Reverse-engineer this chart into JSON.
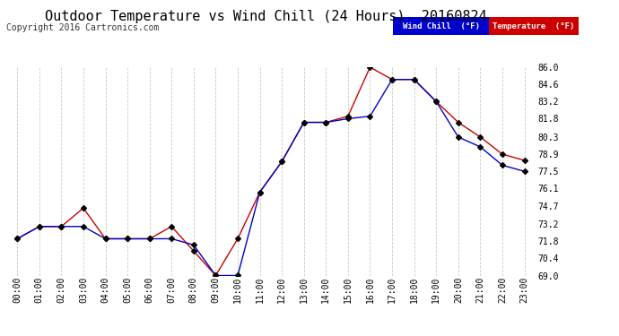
{
  "title": "Outdoor Temperature vs Wind Chill (24 Hours)  20160824",
  "copyright": "Copyright 2016 Cartronics.com",
  "ylabel_right_ticks": [
    69.0,
    70.4,
    71.8,
    73.2,
    74.7,
    76.1,
    77.5,
    78.9,
    80.3,
    81.8,
    83.2,
    84.6,
    86.0
  ],
  "xlabels": [
    "00:00",
    "01:00",
    "02:00",
    "03:00",
    "04:00",
    "05:00",
    "06:00",
    "07:00",
    "08:00",
    "09:00",
    "10:00",
    "11:00",
    "12:00",
    "13:00",
    "14:00",
    "15:00",
    "16:00",
    "17:00",
    "18:00",
    "19:00",
    "20:00",
    "21:00",
    "22:00",
    "23:00"
  ],
  "ylim": [
    69.0,
    86.0
  ],
  "xlim": [
    0,
    23
  ],
  "temperature": [
    72.0,
    73.0,
    73.0,
    74.5,
    72.0,
    72.0,
    72.0,
    73.0,
    71.0,
    69.0,
    72.0,
    75.8,
    78.3,
    81.5,
    81.5,
    82.0,
    86.0,
    85.0,
    85.0,
    83.2,
    81.5,
    80.3,
    78.9,
    78.4
  ],
  "wind_chill": [
    72.0,
    73.0,
    73.0,
    73.0,
    72.0,
    72.0,
    72.0,
    72.0,
    71.5,
    69.0,
    69.0,
    75.8,
    78.3,
    81.5,
    81.5,
    81.8,
    82.0,
    85.0,
    85.0,
    83.2,
    80.3,
    79.5,
    78.0,
    77.5
  ],
  "temp_color": "#cc0000",
  "wind_chill_color": "#0000cc",
  "bg_color": "#ffffff",
  "plot_bg_color": "#ffffff",
  "grid_color": "#c8c8c8",
  "legend_wind_chill_bg": "#0000cc",
  "legend_temp_bg": "#cc0000",
  "legend_text_color": "#ffffff",
  "title_fontsize": 11,
  "copyright_fontsize": 7,
  "tick_fontsize": 7,
  "marker": "D",
  "marker_size": 3,
  "marker_color": "#000000",
  "line_width": 1.0
}
